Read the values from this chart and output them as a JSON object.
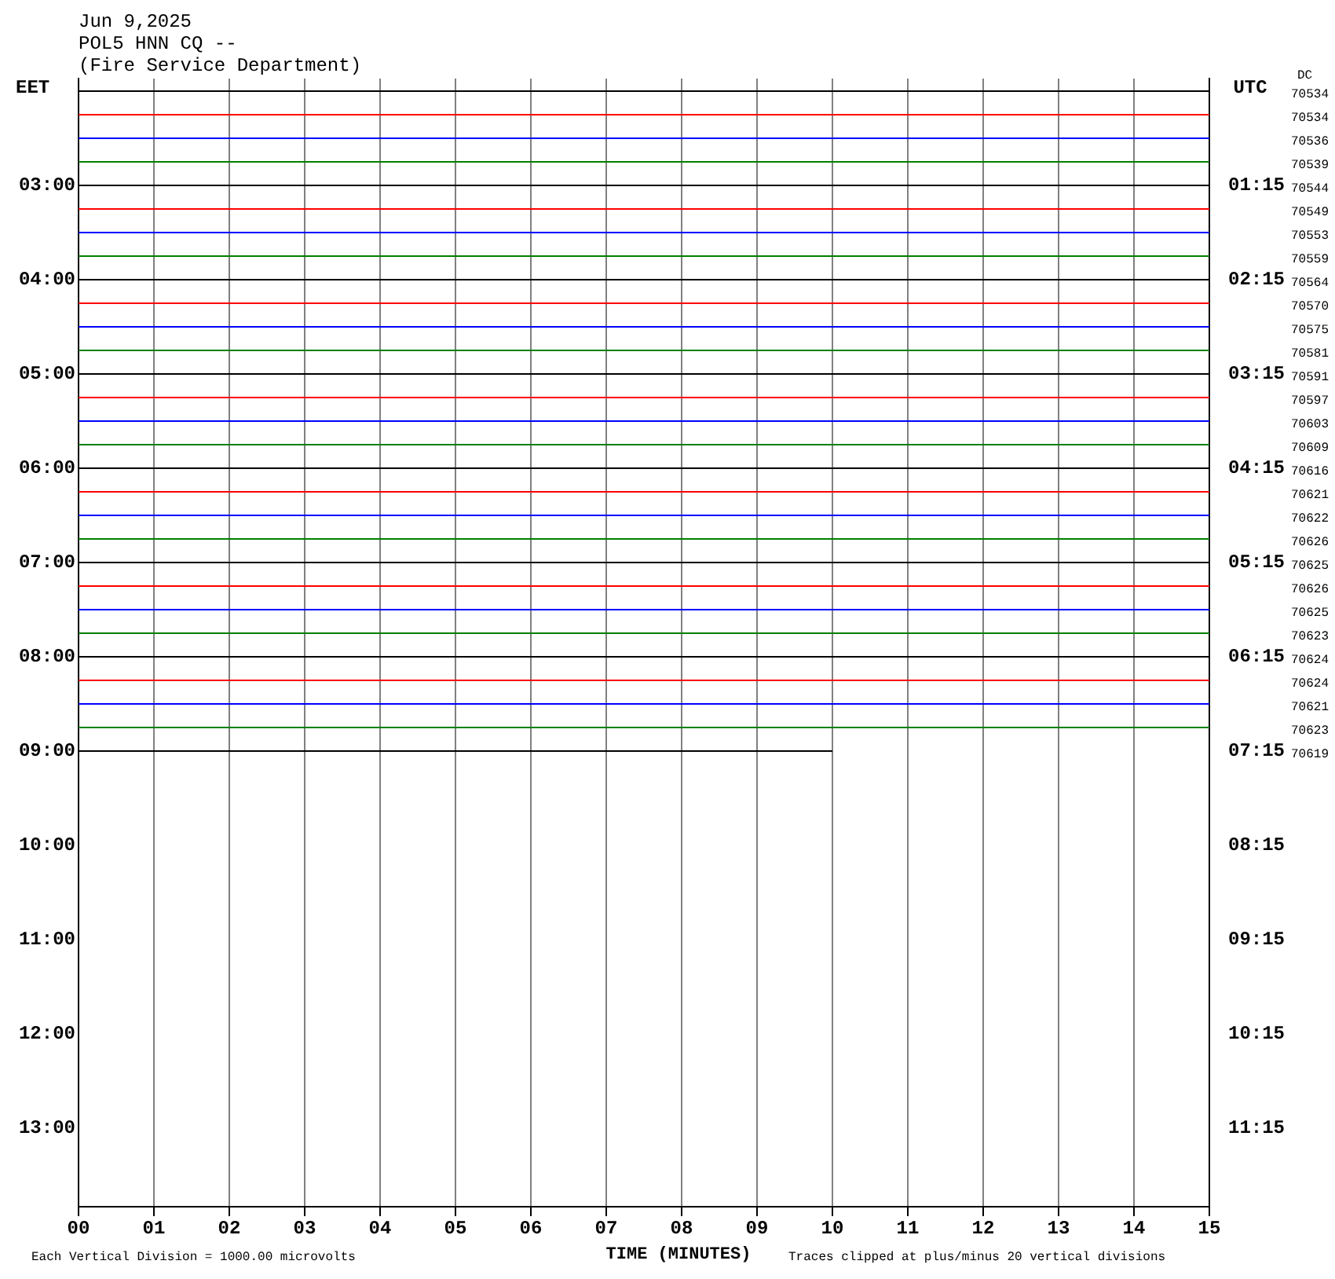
{
  "chart_data": {
    "type": "line",
    "title": "Jun 9,2025",
    "subtitle": "POL5 HNN CQ --\n(Fire Service Department)",
    "xlabel": "TIME (MINUTES)",
    "ylabel": "EET",
    "y2label": "UTC",
    "xlim": [
      0,
      15
    ],
    "xticks": [
      {
        "value": 0,
        "label": "00"
      },
      {
        "value": 1,
        "label": "01"
      },
      {
        "value": 2,
        "label": "02"
      },
      {
        "value": 3,
        "label": "03"
      },
      {
        "value": 4,
        "label": "04"
      },
      {
        "value": 5,
        "label": "05"
      },
      {
        "value": 6,
        "label": "06"
      },
      {
        "value": 7,
        "label": "07"
      },
      {
        "value": 8,
        "label": "08"
      },
      {
        "value": 9,
        "label": "09"
      },
      {
        "value": 10,
        "label": "10"
      },
      {
        "value": 11,
        "label": "11"
      },
      {
        "value": 12,
        "label": "12"
      },
      {
        "value": 13,
        "label": "13"
      },
      {
        "value": 14,
        "label": "14"
      },
      {
        "value": 15,
        "label": "15"
      }
    ],
    "ylim": [
      13.8333,
      1.8667
    ],
    "yticks": [
      {
        "value": 3,
        "label": "03:00"
      },
      {
        "value": 4,
        "label": "04:00"
      },
      {
        "value": 5,
        "label": "05:00"
      },
      {
        "value": 6,
        "label": "06:00"
      },
      {
        "value": 7,
        "label": "07:00"
      },
      {
        "value": 8,
        "label": "08:00"
      },
      {
        "value": 9,
        "label": "09:00"
      },
      {
        "value": 10,
        "label": "10:00"
      },
      {
        "value": 11,
        "label": "11:00"
      },
      {
        "value": 12,
        "label": "12:00"
      },
      {
        "value": 13,
        "label": "13:00"
      }
    ],
    "y2lim": [
      12.0833,
      0.1167
    ],
    "y2ticks": [
      {
        "value": 1.25,
        "label": "01:15"
      },
      {
        "value": 2.25,
        "label": "02:15"
      },
      {
        "value": 3.25,
        "label": "03:15"
      },
      {
        "value": 4.25,
        "label": "04:15"
      },
      {
        "value": 5.25,
        "label": "05:15"
      },
      {
        "value": 6.25,
        "label": "06:15"
      },
      {
        "value": 7.25,
        "label": "07:15"
      },
      {
        "value": 8.25,
        "label": "08:15"
      },
      {
        "value": 9.25,
        "label": "09:15"
      },
      {
        "value": 10.25,
        "label": "10:15"
      },
      {
        "value": 11.25,
        "label": "11:15"
      }
    ],
    "grid": "x",
    "legend": false,
    "series": [
      {
        "color": "#000000",
        "x": [
          0,
          15
        ],
        "values": [
          2,
          2
        ]
      },
      {
        "color": "#ff0000",
        "x": [
          0,
          15
        ],
        "values": [
          2.25,
          2.25
        ]
      },
      {
        "color": "#0000ff",
        "x": [
          0,
          15
        ],
        "values": [
          2.5,
          2.5
        ]
      },
      {
        "color": "#008000",
        "x": [
          0,
          15
        ],
        "values": [
          2.75,
          2.75
        ]
      },
      {
        "color": "#000000",
        "x": [
          0,
          15
        ],
        "values": [
          3,
          3
        ]
      },
      {
        "color": "#ff0000",
        "x": [
          0,
          15
        ],
        "values": [
          3.25,
          3.25
        ]
      },
      {
        "color": "#0000ff",
        "x": [
          0,
          15
        ],
        "values": [
          3.5,
          3.5
        ]
      },
      {
        "color": "#008000",
        "x": [
          0,
          15
        ],
        "values": [
          3.75,
          3.75
        ]
      },
      {
        "color": "#000000",
        "x": [
          0,
          15
        ],
        "values": [
          4,
          4
        ]
      },
      {
        "color": "#ff0000",
        "x": [
          0,
          15
        ],
        "values": [
          4.25,
          4.25
        ]
      },
      {
        "color": "#0000ff",
        "x": [
          0,
          15
        ],
        "values": [
          4.5,
          4.5
        ]
      },
      {
        "color": "#008000",
        "x": [
          0,
          15
        ],
        "values": [
          4.75,
          4.75
        ]
      },
      {
        "color": "#000000",
        "x": [
          0,
          15
        ],
        "values": [
          5,
          5
        ]
      },
      {
        "color": "#ff0000",
        "x": [
          0,
          15
        ],
        "values": [
          5.25,
          5.25
        ]
      },
      {
        "color": "#0000ff",
        "x": [
          0,
          15
        ],
        "values": [
          5.5,
          5.5
        ]
      },
      {
        "color": "#008000",
        "x": [
          0,
          15
        ],
        "values": [
          5.75,
          5.75
        ]
      },
      {
        "color": "#000000",
        "x": [
          0,
          15
        ],
        "values": [
          6,
          6
        ]
      },
      {
        "color": "#ff0000",
        "x": [
          0,
          15
        ],
        "values": [
          6.25,
          6.25
        ]
      },
      {
        "color": "#0000ff",
        "x": [
          0,
          15
        ],
        "values": [
          6.5,
          6.5
        ]
      },
      {
        "color": "#008000",
        "x": [
          0,
          15
        ],
        "values": [
          6.75,
          6.75
        ]
      },
      {
        "color": "#000000",
        "x": [
          0,
          15
        ],
        "values": [
          7,
          7
        ]
      },
      {
        "color": "#ff0000",
        "x": [
          0,
          15
        ],
        "values": [
          7.25,
          7.25
        ]
      },
      {
        "color": "#0000ff",
        "x": [
          0,
          15
        ],
        "values": [
          7.5,
          7.5
        ]
      },
      {
        "color": "#008000",
        "x": [
          0,
          15
        ],
        "values": [
          7.75,
          7.75
        ]
      },
      {
        "color": "#000000",
        "x": [
          0,
          15
        ],
        "values": [
          8,
          8
        ]
      },
      {
        "color": "#ff0000",
        "x": [
          0,
          15
        ],
        "values": [
          8.25,
          8.25
        ]
      },
      {
        "color": "#0000ff",
        "x": [
          0,
          15
        ],
        "values": [
          8.5,
          8.5
        ]
      },
      {
        "color": "#008000",
        "x": [
          0,
          15
        ],
        "values": [
          8.75,
          8.75
        ]
      },
      {
        "color": "#000000",
        "x": [
          0,
          10
        ],
        "values": [
          9,
          9
        ]
      }
    ],
    "annotations": [
      "DC",
      "Each Vertical Division = 1000.00 microvolts",
      "Traces clipped at plus/minus 20 vertical divisions",
      "70534",
      "70534",
      "70536",
      "70539",
      "70544",
      "70549",
      "70553",
      "70559",
      "70564",
      "70570",
      "70575",
      "70581",
      "70591",
      "70597",
      "70603",
      "70609",
      "70616",
      "70621",
      "70622",
      "70626",
      "70625",
      "70626",
      "70625",
      "70623",
      "70624",
      "70624",
      "70621",
      "70623",
      "70619"
    ]
  }
}
